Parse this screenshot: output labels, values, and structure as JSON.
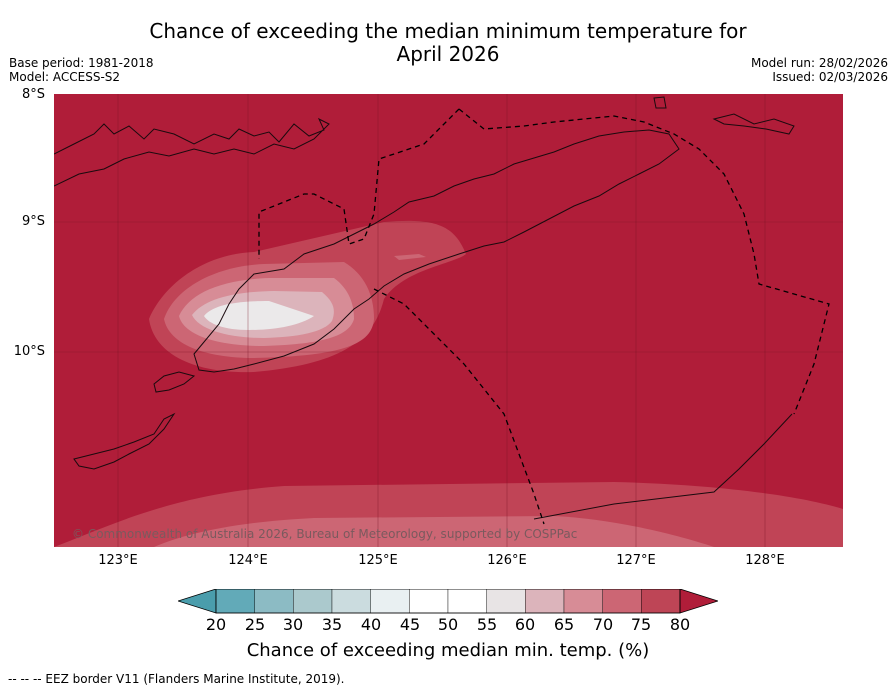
{
  "title_line1": "Chance of exceeding the median minimum temperature for",
  "title_line2": "April 2026",
  "meta": {
    "base_period": "Base period: 1981-2018",
    "model": "Model: ACCESS-S2",
    "model_run": "Model run: 28/02/2026",
    "issued": "Issued: 02/03/2026"
  },
  "axes": {
    "lat_labels": [
      "8°S",
      "9°S",
      "10°S"
    ],
    "lon_labels": [
      "123°E",
      "124°E",
      "125°E",
      "126°E",
      "127°E",
      "128°E"
    ]
  },
  "colorbar": {
    "ticks": [
      "20",
      "25",
      "30",
      "35",
      "40",
      "45",
      "50",
      "55",
      "60",
      "65",
      "70",
      "75",
      "80"
    ],
    "colors": [
      "#4a9dac",
      "#62aab8",
      "#8cbbc4",
      "#abc9cd",
      "#cbdcdf",
      "#e9f0f2",
      "#ffffff",
      "#ffffff",
      "#e8e4e5",
      "#dcb4bb",
      "#d78c96",
      "#cc6674",
      "#be4556",
      "#b01d39"
    ],
    "label": "Chance of exceeding median min. temp. (%)"
  },
  "map_colors": {
    "p80": "#b01d39",
    "p75": "#c04456",
    "p70": "#cc6674",
    "p65": "#d78c96",
    "p60": "#dcb4bb",
    "p55": "#ebe9ea"
  },
  "copyright": "© Commonwealth of Australia 2026, Bureau of Meteorology, supported by COSPPac",
  "footer": "--  --  -- EEZ border V11 (Flanders Marine Institute, 2019)."
}
